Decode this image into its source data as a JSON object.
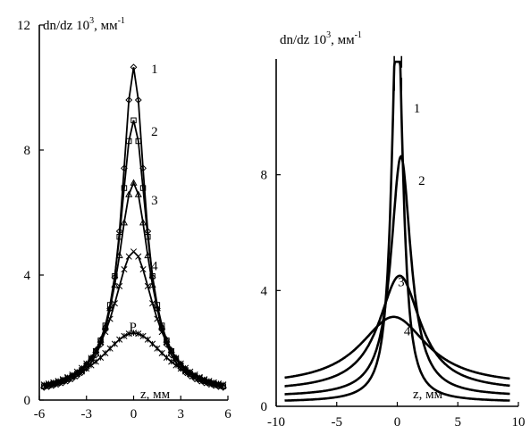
{
  "chart_data": [
    {
      "type": "line",
      "ylabel_base": "dn/dz 10",
      "ylabel_sup": "3",
      "ylabel_unit": ", мм",
      "ylabel_unit_sup": "-1",
      "xlabel": "z, мм",
      "xlim": [
        -6,
        6
      ],
      "ylim": [
        0,
        12
      ],
      "x_ticks": [
        "-6",
        "-3",
        "0",
        "3",
        "6"
      ],
      "y_ticks": [
        "0",
        "4",
        "8",
        "12"
      ],
      "x_tick_values": [
        -6,
        -3,
        0,
        3,
        6
      ],
      "y_tick_values": [
        0,
        4,
        8,
        12
      ],
      "series": [
        {
          "name": "1",
          "marker": "diamond",
          "peak": 10.5,
          "width": 0.9,
          "label_at": [
            1,
            10.6
          ]
        },
        {
          "name": "2",
          "marker": "square",
          "peak": 8.8,
          "width": 1.05,
          "label_at": [
            1,
            8.6
          ]
        },
        {
          "name": "3",
          "marker": "triangle",
          "peak": 6.8,
          "width": 1.25,
          "label_at": [
            1,
            6.4
          ]
        },
        {
          "name": "4",
          "marker": "x",
          "peak": 4.6,
          "width": 1.6,
          "label_at": [
            1,
            4.3
          ]
        },
        {
          "name": "P",
          "marker": "star",
          "peak": 2.0,
          "width": 2.6,
          "label_at": [
            0,
            2.35
          ]
        }
      ]
    },
    {
      "type": "line",
      "ylabel_base": "dn/dz 10",
      "ylabel_sup": "3",
      "ylabel_unit": ", мм",
      "ylabel_unit_sup": "-1",
      "xlabel": "z, мм",
      "xlim": [
        -10,
        10
      ],
      "ylim": [
        0,
        12
      ],
      "x_ticks": [
        "-10",
        "-5",
        "0",
        "5",
        "10"
      ],
      "y_ticks": [
        "0",
        "4",
        "8"
      ],
      "x_tick_values": [
        -10,
        -5,
        0,
        5,
        10
      ],
      "y_tick_values": [
        0,
        4,
        8
      ],
      "series": [
        {
          "name": "1",
          "peak": 14.0,
          "width": 0.55,
          "center": 0.0,
          "label_at": [
            1.2,
            10.3
          ]
        },
        {
          "name": "2",
          "peak": 8.3,
          "width": 1.0,
          "center": 0.3,
          "label_at": [
            1.6,
            7.8
          ]
        },
        {
          "name": "3",
          "peak": 4.0,
          "width": 2.1,
          "center": 0.2,
          "label_at": [
            -0.1,
            4.3
          ]
        },
        {
          "name": "4",
          "peak": 2.4,
          "width": 3.4,
          "center": -0.3,
          "label_at": [
            0.4,
            2.6
          ]
        }
      ]
    }
  ]
}
